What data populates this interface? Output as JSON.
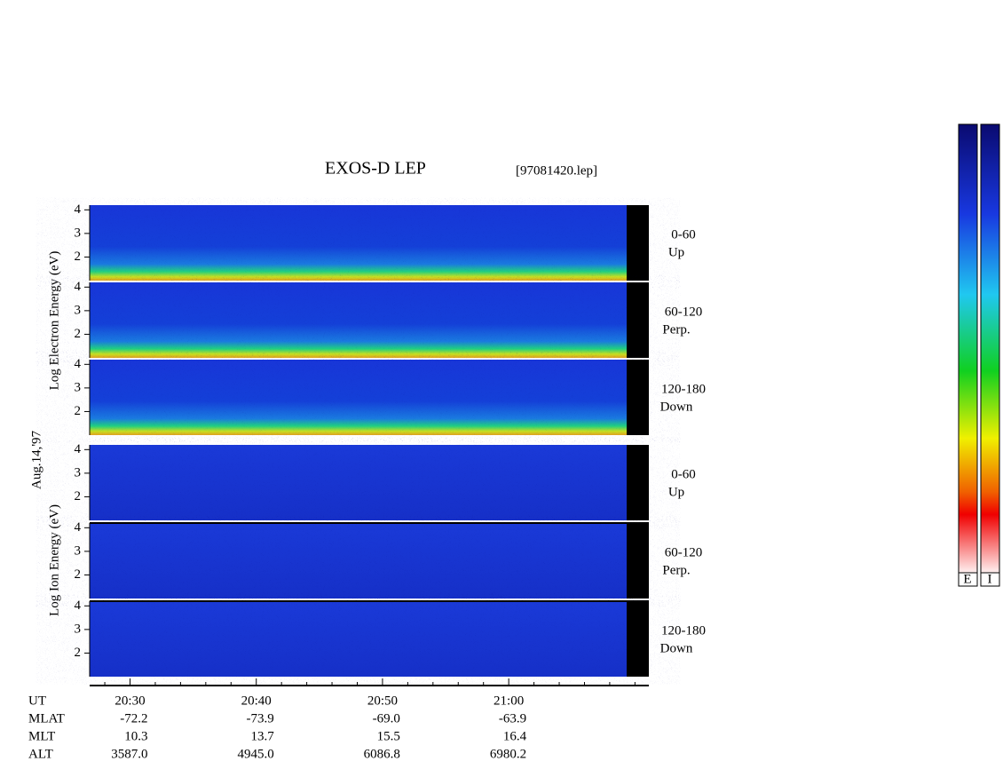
{
  "chart_data": {
    "type": "spectrogram",
    "title": "EXOS-D LEP",
    "file_label": "[97081420.lep]",
    "date_label": "Aug.14,'97",
    "ylim": [
      1,
      4.2
    ],
    "yticks": [
      2,
      3,
      4
    ],
    "xlim": [
      1226.8,
      1271.1
    ],
    "xticks": [
      {
        "value": 1230,
        "label": "20:30"
      },
      {
        "value": 1240,
        "label": "20:40"
      },
      {
        "value": 1250,
        "label": "20:50"
      },
      {
        "value": 1260,
        "label": "21:00"
      }
    ],
    "xminorticks": [
      1228,
      1232,
      1234,
      1236,
      1238,
      1242,
      1244,
      1246,
      1248,
      1252,
      1254,
      1256,
      1258,
      1262,
      1264,
      1266,
      1268,
      1270
    ],
    "groups": [
      {
        "ylabel": "Log  Electron  Energy (eV)",
        "kind": "electron",
        "panels": [
          {
            "label": "0-60",
            "sublabel": "Up"
          },
          {
            "label": "60-120",
            "sublabel": "Perp."
          },
          {
            "label": "120-180",
            "sublabel": "Down"
          }
        ]
      },
      {
        "ylabel": "Log  Ion  Energy (eV)",
        "kind": "ion",
        "panels": [
          {
            "label": "0-60",
            "sublabel": "Up"
          },
          {
            "label": "60-120",
            "sublabel": "Perp."
          },
          {
            "label": "120-180",
            "sublabel": "Down"
          }
        ]
      }
    ],
    "orbit": {
      "row_labels": [
        "UT",
        "MLAT",
        "MLT",
        "ALT"
      ],
      "MLAT": [
        "-72.2",
        "-73.9",
        "-69.0",
        "-63.9"
      ],
      "MLT": [
        "10.3",
        "13.7",
        "15.5",
        "16.4"
      ],
      "ALT": [
        "3587.0",
        "4945.0",
        "6086.8",
        "6980.2"
      ]
    },
    "colorbar_labels": [
      "E",
      "I"
    ]
  }
}
